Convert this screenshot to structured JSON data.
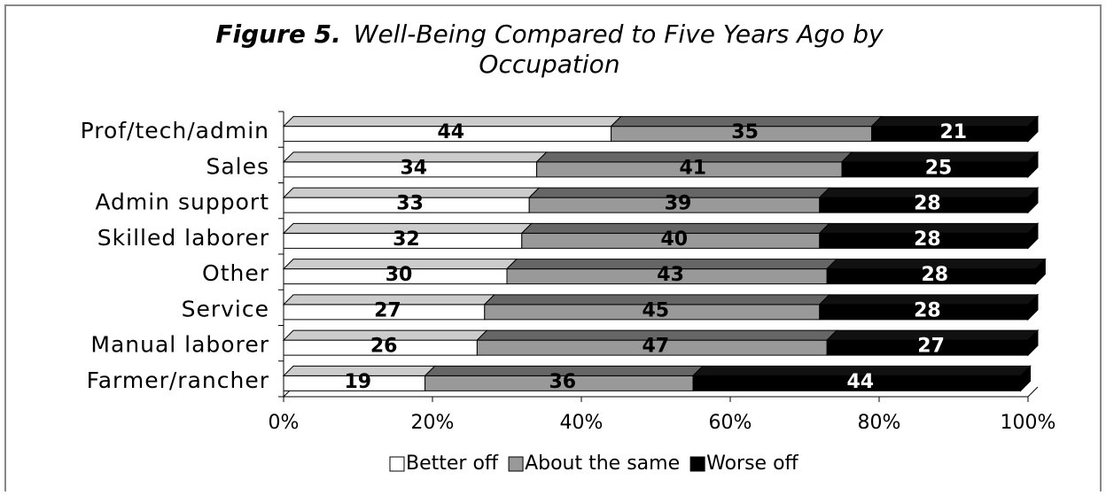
{
  "chart_data": {
    "type": "stacked-bar-horizontal",
    "figure_label": "Figure 5.",
    "title": "Well-Being Compared to Five Years Ago by Occupation",
    "categories": [
      "Prof/tech/admin",
      "Sales",
      "Admin support",
      "Skilled laborer",
      "Other",
      "Service",
      "Manual laborer",
      "Farmer/rancher"
    ],
    "series": [
      {
        "name": "Better off",
        "color": "#ffffff",
        "top_color": "#cccccc",
        "label_color": "#000000",
        "values": [
          44,
          34,
          33,
          32,
          30,
          27,
          26,
          19
        ]
      },
      {
        "name": "About the same",
        "color": "#999999",
        "top_color": "#666666",
        "label_color": "#000000",
        "values": [
          35,
          41,
          39,
          40,
          43,
          45,
          47,
          36
        ]
      },
      {
        "name": "Worse off",
        "color": "#000000",
        "top_color": "#111111",
        "label_color": "#ffffff",
        "values": [
          21,
          25,
          28,
          28,
          28,
          28,
          27,
          44
        ]
      }
    ],
    "xlim": [
      0,
      100
    ],
    "xticks": [
      {
        "value": 0,
        "label": "0%"
      },
      {
        "value": 20,
        "label": "20%"
      },
      {
        "value": 40,
        "label": "40%"
      },
      {
        "value": 60,
        "label": "60%"
      },
      {
        "value": 80,
        "label": "80%"
      },
      {
        "value": 100,
        "label": "100%"
      }
    ],
    "legend": "bottom"
  }
}
